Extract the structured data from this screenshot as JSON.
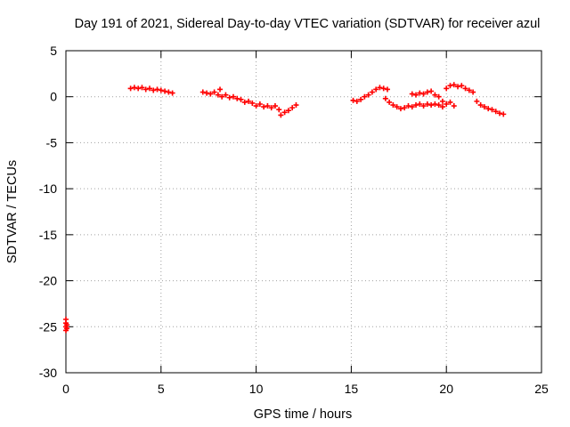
{
  "chart_data": {
    "type": "scatter",
    "title": "Day 191 of 2021, Sidereal Day-to-day VTEC variation (SDTVAR) for receiver azul",
    "xlabel": "GPS time / hours",
    "ylabel": "SDTVAR / TECUs",
    "xlim": [
      0,
      25
    ],
    "ylim": [
      -30,
      5
    ],
    "x_ticks": [
      0,
      5,
      10,
      15,
      20,
      25
    ],
    "y_ticks": [
      5,
      0,
      -5,
      -10,
      -15,
      -20,
      -25,
      -30
    ],
    "grid": true,
    "marker": "plus",
    "color": "#ff0000",
    "series": [
      {
        "name": "SDTVAR",
        "points": [
          [
            0.0,
            -24.2
          ],
          [
            0.0,
            -24.6
          ],
          [
            0.0,
            -25.0
          ],
          [
            0.0,
            -25.4
          ],
          [
            0.05,
            -24.8
          ],
          [
            0.05,
            -25.2
          ],
          [
            3.4,
            0.9
          ],
          [
            3.6,
            1.0
          ],
          [
            3.8,
            0.9
          ],
          [
            4.0,
            1.0
          ],
          [
            4.2,
            0.8
          ],
          [
            4.4,
            0.9
          ],
          [
            4.6,
            0.7
          ],
          [
            4.8,
            0.8
          ],
          [
            5.0,
            0.7
          ],
          [
            5.2,
            0.6
          ],
          [
            5.4,
            0.5
          ],
          [
            5.6,
            0.4
          ],
          [
            7.2,
            0.5
          ],
          [
            7.4,
            0.4
          ],
          [
            7.6,
            0.3
          ],
          [
            7.8,
            0.5
          ],
          [
            8.0,
            0.2
          ],
          [
            8.1,
            0.8
          ],
          [
            8.2,
            0.0
          ],
          [
            8.4,
            0.2
          ],
          [
            8.6,
            -0.1
          ],
          [
            8.8,
            0.0
          ],
          [
            9.0,
            -0.2
          ],
          [
            9.2,
            -0.3
          ],
          [
            9.4,
            -0.6
          ],
          [
            9.6,
            -0.5
          ],
          [
            9.8,
            -0.7
          ],
          [
            10.0,
            -1.0
          ],
          [
            10.2,
            -0.8
          ],
          [
            10.4,
            -1.1
          ],
          [
            10.6,
            -1.0
          ],
          [
            10.8,
            -1.2
          ],
          [
            11.0,
            -1.0
          ],
          [
            11.2,
            -1.4
          ],
          [
            11.3,
            -2.0
          ],
          [
            11.5,
            -1.7
          ],
          [
            11.7,
            -1.5
          ],
          [
            11.9,
            -1.2
          ],
          [
            12.1,
            -0.9
          ],
          [
            15.1,
            -0.4
          ],
          [
            15.3,
            -0.5
          ],
          [
            15.5,
            -0.3
          ],
          [
            15.7,
            0.0
          ],
          [
            15.9,
            0.2
          ],
          [
            16.1,
            0.5
          ],
          [
            16.3,
            0.8
          ],
          [
            16.5,
            1.0
          ],
          [
            16.7,
            0.9
          ],
          [
            16.9,
            0.8
          ],
          [
            16.8,
            -0.2
          ],
          [
            17.0,
            -0.6
          ],
          [
            17.2,
            -0.9
          ],
          [
            17.4,
            -1.1
          ],
          [
            17.6,
            -1.3
          ],
          [
            17.8,
            -1.2
          ],
          [
            18.0,
            -1.0
          ],
          [
            18.2,
            -1.1
          ],
          [
            18.4,
            -0.9
          ],
          [
            18.6,
            -0.8
          ],
          [
            18.8,
            -1.0
          ],
          [
            19.0,
            -0.8
          ],
          [
            19.2,
            -0.9
          ],
          [
            19.4,
            -0.8
          ],
          [
            19.6,
            -0.9
          ],
          [
            19.8,
            -1.1
          ],
          [
            18.2,
            0.3
          ],
          [
            18.4,
            0.2
          ],
          [
            18.6,
            0.4
          ],
          [
            18.8,
            0.3
          ],
          [
            19.0,
            0.5
          ],
          [
            19.2,
            0.6
          ],
          [
            19.4,
            0.2
          ],
          [
            19.6,
            0.0
          ],
          [
            19.8,
            -0.5
          ],
          [
            20.0,
            0.9
          ],
          [
            20.2,
            1.2
          ],
          [
            20.4,
            1.3
          ],
          [
            20.6,
            1.1
          ],
          [
            20.8,
            1.2
          ],
          [
            21.0,
            0.9
          ],
          [
            21.2,
            0.7
          ],
          [
            21.4,
            0.5
          ],
          [
            20.0,
            -0.8
          ],
          [
            20.2,
            -0.6
          ],
          [
            20.4,
            -1.0
          ],
          [
            21.6,
            -0.5
          ],
          [
            21.8,
            -0.9
          ],
          [
            22.0,
            -1.1
          ],
          [
            22.2,
            -1.3
          ],
          [
            22.4,
            -1.4
          ],
          [
            22.6,
            -1.6
          ],
          [
            22.8,
            -1.8
          ],
          [
            23.0,
            -1.9
          ]
        ]
      }
    ]
  }
}
